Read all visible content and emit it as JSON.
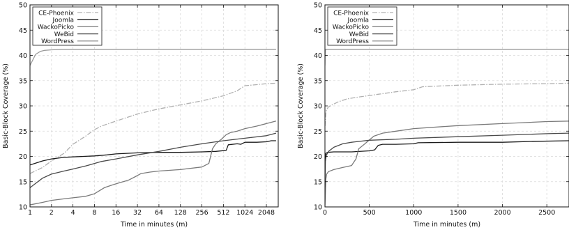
{
  "chart_data": [
    {
      "type": "line",
      "xscale": "log2",
      "xlabel": "Time in minutes (m)",
      "ylabel": "Basic-Block Coverage (%)",
      "xlim": [
        1,
        3000
      ],
      "ylim": [
        10,
        50
      ],
      "xticks": [
        1,
        2,
        4,
        8,
        16,
        32,
        64,
        128,
        256,
        512,
        1024,
        2048
      ],
      "xtick_labels": [
        "1",
        "2",
        "4",
        "8",
        "16",
        "32",
        "64",
        "128",
        "256",
        "512",
        "1024",
        "2048"
      ],
      "yticks": [
        10,
        15,
        20,
        25,
        30,
        35,
        40,
        45,
        50
      ],
      "grid": true,
      "legend_position": "top-left",
      "series": [
        {
          "name": "CE-Phoenix",
          "color": "#b0b0b0",
          "style": "dashdot",
          "x": [
            1,
            1.5,
            2,
            3,
            4,
            6,
            8,
            10,
            16,
            24,
            32,
            48,
            64,
            128,
            256,
            512,
            800,
            1024,
            1500,
            2048,
            2800
          ],
          "y": [
            16.6,
            17.8,
            19.1,
            20.6,
            22.4,
            24.0,
            25.3,
            26.0,
            27.0,
            27.8,
            28.4,
            29.0,
            29.4,
            30.2,
            31.0,
            32.0,
            33.0,
            34.0,
            34.2,
            34.4,
            34.5
          ]
        },
        {
          "name": "Joomla",
          "color": "#1a1a1a",
          "style": "solid",
          "x": [
            1,
            1.5,
            2,
            3,
            4,
            8,
            12,
            16,
            32,
            64,
            128,
            256,
            400,
            560,
            600,
            800,
            900,
            1024,
            1500,
            2048,
            2400,
            2800
          ],
          "y": [
            18.3,
            19.1,
            19.5,
            19.8,
            19.9,
            20.1,
            20.3,
            20.5,
            20.7,
            20.8,
            20.8,
            20.9,
            21.0,
            21.2,
            22.3,
            22.5,
            22.4,
            22.8,
            22.8,
            22.9,
            23.1,
            23.1
          ]
        },
        {
          "name": "WackoPicko",
          "color": "#7a7a7a",
          "style": "solid",
          "x": [
            1,
            1.5,
            2,
            3,
            4,
            6,
            8,
            11,
            14,
            18,
            24,
            30,
            36,
            48,
            64,
            128,
            256,
            320,
            360,
            400,
            480,
            560,
            640,
            800,
            1024,
            1500,
            2048,
            2800
          ],
          "y": [
            10.4,
            10.9,
            11.3,
            11.6,
            11.8,
            12.1,
            12.6,
            13.8,
            14.3,
            14.8,
            15.3,
            16.0,
            16.6,
            16.9,
            17.1,
            17.4,
            17.9,
            18.6,
            21.5,
            22.5,
            23.4,
            24.3,
            24.7,
            25.0,
            25.5,
            26.0,
            26.5,
            27.0
          ]
        },
        {
          "name": "WeBid",
          "color": "#4a4a4a",
          "style": "solid",
          "x": [
            1,
            1.5,
            2,
            3,
            4,
            6,
            8,
            10,
            16,
            32,
            64,
            128,
            256,
            512,
            1024,
            2048,
            2800
          ],
          "y": [
            13.8,
            15.7,
            16.5,
            17.1,
            17.5,
            18.1,
            18.6,
            19.0,
            19.5,
            20.3,
            21.0,
            21.8,
            22.5,
            23.1,
            23.6,
            24.1,
            24.6
          ]
        },
        {
          "name": "WordPress",
          "color": "#9a9a9a",
          "style": "solid",
          "x": [
            1,
            1.2,
            1.4,
            1.6,
            2,
            3,
            4,
            8,
            64,
            2800
          ],
          "y": [
            38.0,
            40.2,
            40.8,
            41.0,
            41.1,
            41.2,
            41.2,
            41.2,
            41.2,
            41.2
          ]
        }
      ]
    },
    {
      "type": "line",
      "xscale": "linear",
      "xlabel": "Time in minutes (m)",
      "ylabel": "Basic-Block Coverage (%)",
      "xlim": [
        0,
        2750
      ],
      "ylim": [
        10,
        50
      ],
      "xticks": [
        0,
        500,
        1000,
        1500,
        2000,
        2500
      ],
      "xtick_labels": [
        "0",
        "500",
        "1000",
        "1500",
        "2000",
        "2500"
      ],
      "yticks": [
        10,
        15,
        20,
        25,
        30,
        35,
        40,
        45,
        50
      ],
      "grid": true,
      "legend_position": "top-left",
      "series": [
        {
          "name": "CE-Phoenix",
          "color": "#b0b0b0",
          "style": "dashdot",
          "x": [
            1,
            10,
            20,
            40,
            80,
            150,
            250,
            400,
            600,
            800,
            1000,
            1100,
            1500,
            2000,
            2500,
            2750
          ],
          "y": [
            26.0,
            28.5,
            29.3,
            29.8,
            30.2,
            30.8,
            31.4,
            31.8,
            32.3,
            32.8,
            33.2,
            33.8,
            34.1,
            34.3,
            34.4,
            34.5
          ]
        },
        {
          "name": "Joomla",
          "color": "#1a1a1a",
          "style": "solid",
          "x": [
            0,
            10,
            30,
            100,
            300,
            500,
            560,
            600,
            650,
            800,
            1000,
            1050,
            1500,
            2000,
            2400,
            2750
          ],
          "y": [
            18.5,
            20.6,
            20.8,
            20.9,
            20.9,
            21.1,
            21.3,
            22.2,
            22.4,
            22.4,
            22.5,
            22.7,
            22.8,
            22.8,
            23.0,
            23.1
          ]
        },
        {
          "name": "WackoPicko",
          "color": "#7a7a7a",
          "style": "solid",
          "x": [
            0,
            10,
            20,
            40,
            100,
            200,
            300,
            350,
            380,
            450,
            550,
            650,
            800,
            1000,
            1500,
            2000,
            2500,
            2750
          ],
          "y": [
            10.2,
            15.5,
            16.5,
            17.0,
            17.4,
            17.8,
            18.2,
            19.5,
            21.5,
            22.5,
            24.0,
            24.6,
            25.0,
            25.5,
            26.1,
            26.5,
            26.9,
            27.0
          ]
        },
        {
          "name": "WeBid",
          "color": "#4a4a4a",
          "style": "solid",
          "x": [
            0,
            5,
            15,
            40,
            100,
            200,
            300,
            500,
            800,
            1000,
            1500,
            2000,
            2500,
            2750
          ],
          "y": [
            14.0,
            19.0,
            20.2,
            21.0,
            21.8,
            22.5,
            22.8,
            23.2,
            23.4,
            23.6,
            23.9,
            24.2,
            24.5,
            24.6
          ]
        },
        {
          "name": "WordPress",
          "color": "#9a9a9a",
          "style": "solid",
          "x": [
            0,
            2,
            5,
            10,
            20,
            2750
          ],
          "y": [
            38.0,
            40.5,
            41.0,
            41.2,
            41.2,
            41.2
          ]
        }
      ]
    }
  ]
}
